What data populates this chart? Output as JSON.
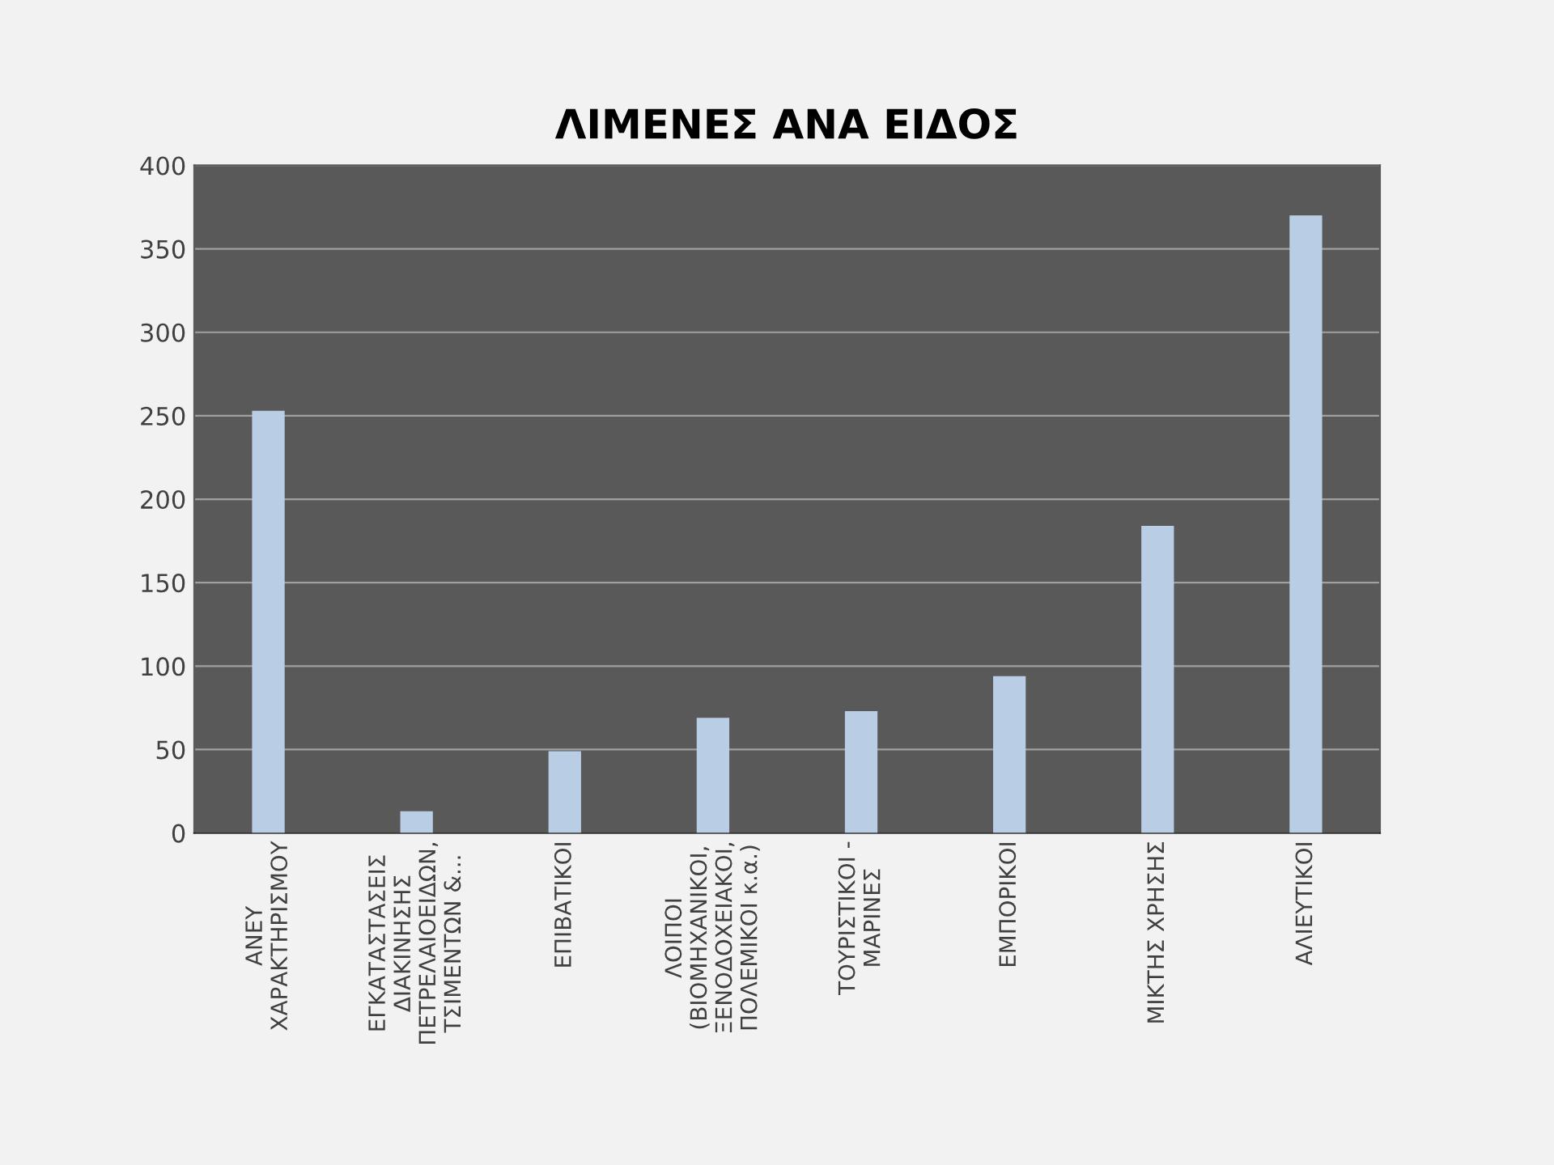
{
  "chart_data": {
    "type": "bar",
    "title": "ΛΙΜΕΝΕΣ ΑΝΑ ΕΙΔΟΣ",
    "categories": [
      "ΑΝΕΥ\nΧΑΡΑΚΤΗΡΙΣΜΟΥ",
      "ΕΓΚΑΤΑΣΤΑΣΕΙΣ\nΔΙΑΚΙΝΗΣΗΣ\nΠΕΤΡΕΛΑΙΟΕΙΔΩΝ,\nΤΣΙΜΕΝΤΩΝ &...",
      "ΕΠΙΒΑΤΙΚΟΙ",
      "ΛΟΙΠΟΙ\n(ΒΙΟΜΗΧΑΝΙΚΟΙ,\nΞΕΝΟΔΟΧΕΙΑΚΟΙ,\nΠΟΛΕΜΙΚΟΙ κ.α.)",
      "ΤΟΥΡΙΣΤΙΚΟΙ -\nΜΑΡΙΝΕΣ",
      "ΕΜΠΟΡΙΚΟΙ",
      "ΜΙΚΤΗΣ ΧΡΗΣΗΣ",
      "ΑΛΙΕΥΤΙΚΟΙ"
    ],
    "values": [
      253,
      13,
      49,
      69,
      73,
      94,
      184,
      370
    ],
    "color": "#b9cde5",
    "ylim": [
      0,
      400
    ],
    "yticks": [
      0,
      50,
      100,
      150,
      200,
      250,
      300,
      350,
      400
    ],
    "grid": "y"
  }
}
